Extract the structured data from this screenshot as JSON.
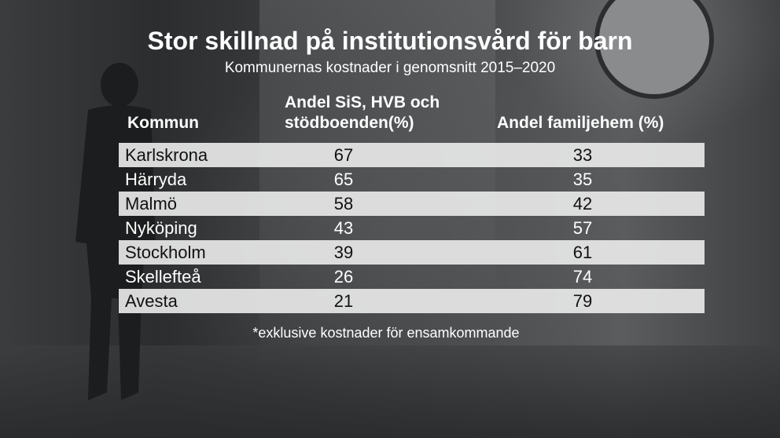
{
  "header": {
    "title": "Stor skillnad på institutionsvård för barn",
    "subtitle": "Kommunernas kostnader i genomsnitt 2015–2020"
  },
  "chart_data": {
    "type": "table",
    "columns": [
      "Kommun",
      "Andel SiS, HVB och stödboenden(%)",
      "Andel familjehem (%)"
    ],
    "rows": [
      {
        "kommun": "Karlskrona",
        "sis_hvb": "67",
        "familjehem": "33"
      },
      {
        "kommun": "Härryda",
        "sis_hvb": "65",
        "familjehem": "35"
      },
      {
        "kommun": "Malmö",
        "sis_hvb": "58",
        "familjehem": "42"
      },
      {
        "kommun": "Nyköping",
        "sis_hvb": "43",
        "familjehem": "57"
      },
      {
        "kommun": "Stockholm",
        "sis_hvb": "39",
        "familjehem": "61"
      },
      {
        "kommun": "Skellefteå",
        "sis_hvb": "26",
        "familjehem": "74"
      },
      {
        "kommun": "Avesta",
        "sis_hvb": "21",
        "familjehem": "79"
      }
    ],
    "footnote": "*exklusive kostnader för ensamkommande"
  },
  "colors": {
    "row_light": "#e8e8e8",
    "text_dark": "#111111",
    "text_light": "#ffffff"
  }
}
